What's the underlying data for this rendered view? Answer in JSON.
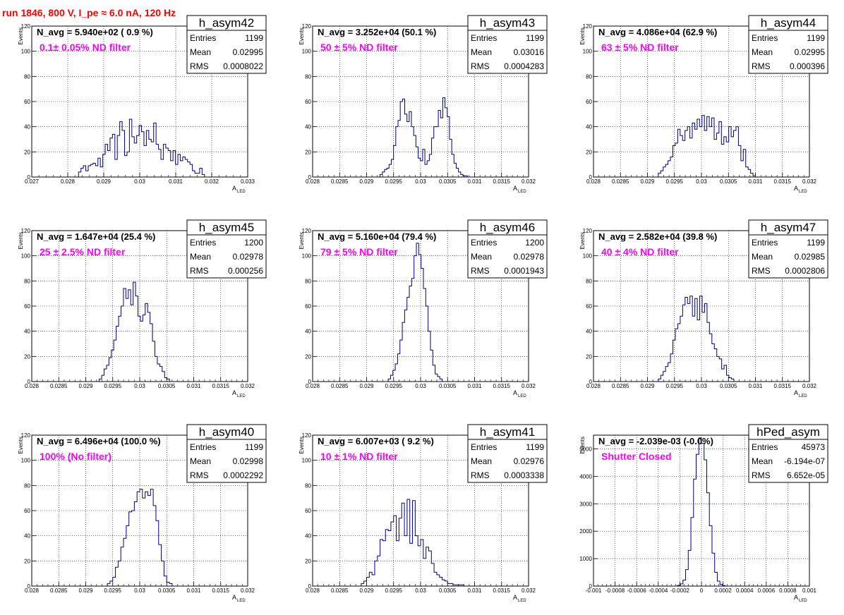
{
  "header": {
    "run_label": "run 1846,   800 V, I_pe ≈ 6.0 nA, 120 Hz"
  },
  "colors": {
    "histogram": "#000080",
    "title": "#ff0000",
    "filter_label": "#ff00ff",
    "grid": "#000000"
  },
  "chart_data": [
    {
      "type": "bar",
      "name": "h_asym42",
      "navg": "N_avg = 5.940e+02 ( 0.9 %)",
      "filter": "0.1± 0.05% ND filter",
      "stats": [
        [
          "Entries",
          "1199"
        ],
        [
          "Mean",
          "0.02995"
        ],
        [
          "RMS",
          "0.0008022"
        ]
      ],
      "xlabel": "A",
      "xlabel_sub": "LED",
      "ylabel": "Events",
      "xlim": [
        0.027,
        0.033
      ],
      "ylim": [
        0,
        120
      ],
      "xticks": [
        "0.027",
        "0.028",
        "0.029",
        "0.03",
        "0.031",
        "0.032",
        "0.033"
      ],
      "yticks": [
        "0",
        "20",
        "40",
        "60",
        "80",
        "100",
        "120"
      ],
      "bin_edges_range": [
        0.0283,
        0.0318
      ],
      "values": [
        4,
        7,
        9,
        5,
        9,
        10,
        11,
        9,
        15,
        8,
        18,
        26,
        21,
        31,
        34,
        14,
        33,
        44,
        37,
        17,
        20,
        46,
        32,
        27,
        33,
        41,
        36,
        25,
        37,
        30,
        28,
        43,
        26,
        22,
        14,
        26,
        23,
        21,
        13,
        21,
        10,
        18,
        13,
        16,
        14,
        12,
        10,
        5,
        3,
        3,
        7,
        2
      ]
    },
    {
      "type": "bar",
      "name": "h_asym43",
      "navg": "N_avg = 3.252e+04 (50.1 %)",
      "filter": "50 ± 5% ND filter",
      "stats": [
        [
          "Entries",
          "1199"
        ],
        [
          "Mean",
          "0.03016"
        ],
        [
          "RMS",
          "0.0004283"
        ]
      ],
      "xlabel": "A",
      "xlabel_sub": "LED",
      "ylabel": "Events",
      "xlim": [
        0.028,
        0.032
      ],
      "ylim": [
        0,
        120
      ],
      "xticks": [
        "0.028",
        "0.0285",
        "0.029",
        "0.0295",
        "0.03",
        "0.0305",
        "0.031",
        "0.0315",
        "0.032"
      ],
      "yticks": [
        "0",
        "20",
        "40",
        "60",
        "80",
        "100",
        "120"
      ],
      "bin_edges_range": [
        0.02925,
        0.03095
      ],
      "values": [
        2,
        4,
        6,
        7,
        10,
        14,
        25,
        40,
        45,
        60,
        62,
        50,
        44,
        52,
        40,
        33,
        24,
        15,
        13,
        22,
        10,
        13,
        18,
        31,
        40,
        40,
        53,
        47,
        63,
        55,
        48,
        30,
        18,
        11,
        7,
        4,
        2,
        1,
        1,
        0,
        0
      ]
    },
    {
      "type": "bar",
      "name": "h_asym44",
      "navg": "N_avg = 4.086e+04 (62.9 %)",
      "filter": "63 ± 5% ND filter",
      "stats": [
        [
          "Entries",
          "1199"
        ],
        [
          "Mean",
          "0.02995"
        ],
        [
          "RMS",
          "0.000396"
        ]
      ],
      "xlabel": "A",
      "xlabel_sub": "LED",
      "ylabel": "Events",
      "xlim": [
        0.028,
        0.032
      ],
      "ylim": [
        0,
        120
      ],
      "xticks": [
        "0.028",
        "0.0285",
        "0.029",
        "0.0295",
        "0.03",
        "0.0305",
        "0.031",
        "0.0315",
        "0.032"
      ],
      "yticks": [
        "0",
        "20",
        "40",
        "60",
        "80",
        "100",
        "120"
      ],
      "bin_edges_range": [
        0.0292,
        0.031
      ],
      "values": [
        3,
        5,
        8,
        10,
        13,
        16,
        25,
        27,
        38,
        33,
        29,
        37,
        40,
        31,
        43,
        38,
        46,
        40,
        49,
        37,
        48,
        40,
        47,
        30,
        35,
        44,
        26,
        32,
        28,
        40,
        32,
        37,
        40,
        25,
        13,
        22,
        8,
        6,
        3,
        1
      ]
    },
    {
      "type": "bar",
      "name": "h_asym45",
      "navg": "N_avg = 1.647e+04 (25.4 %)",
      "filter": "25 ± 2.5% ND filter",
      "stats": [
        [
          "Entries",
          "1200"
        ],
        [
          "Mean",
          "0.02978"
        ],
        [
          "RMS",
          "0.000256"
        ]
      ],
      "xlabel": "A",
      "xlabel_sub": "LED",
      "ylabel": "Events",
      "xlim": [
        0.028,
        0.032
      ],
      "ylim": [
        0,
        120
      ],
      "xticks": [
        "0.028",
        "0.0285",
        "0.029",
        "0.0295",
        "0.03",
        "0.0305",
        "0.031",
        "0.0315",
        "0.032"
      ],
      "yticks": [
        "0",
        "20",
        "40",
        "60",
        "80",
        "100",
        "120"
      ],
      "bin_edges_range": [
        0.02925,
        0.03055
      ],
      "values": [
        2,
        5,
        10,
        13,
        19,
        25,
        33,
        44,
        52,
        60,
        74,
        66,
        73,
        61,
        79,
        68,
        52,
        48,
        53,
        62,
        55,
        46,
        32,
        20,
        14,
        12,
        8,
        3,
        2
      ]
    },
    {
      "type": "bar",
      "name": "h_asym46",
      "navg": "N_avg = 5.160e+04 (79.4 %)",
      "filter": "79 ± 5% ND filter",
      "stats": [
        [
          "Entries",
          "1200"
        ],
        [
          "Mean",
          "0.02978"
        ],
        [
          "RMS",
          "0.0001943"
        ]
      ],
      "xlabel": "A",
      "xlabel_sub": "LED",
      "ylabel": "Events",
      "xlim": [
        0.028,
        0.032
      ],
      "ylim": [
        0,
        120
      ],
      "xticks": [
        "0.028",
        "0.0285",
        "0.029",
        "0.0295",
        "0.03",
        "0.0305",
        "0.031",
        "0.0315",
        "0.032"
      ],
      "yticks": [
        "0",
        "20",
        "40",
        "60",
        "80",
        "100",
        "120"
      ],
      "bin_edges_range": [
        0.0294,
        0.0304
      ],
      "values": [
        2,
        5,
        9,
        14,
        22,
        33,
        47,
        57,
        67,
        76,
        82,
        100,
        110,
        101,
        90,
        74,
        60,
        40,
        25,
        13,
        6,
        4,
        2
      ]
    },
    {
      "type": "bar",
      "name": "h_asym47",
      "navg": "N_avg = 2.582e+04 (39.8 %)",
      "filter": "40 ± 4% ND filter",
      "stats": [
        [
          "Entries",
          "1199"
        ],
        [
          "Mean",
          "0.02985"
        ],
        [
          "RMS",
          "0.0002806"
        ]
      ],
      "xlabel": "A",
      "xlabel_sub": "LED",
      "ylabel": "Events",
      "xlim": [
        0.028,
        0.032
      ],
      "ylim": [
        0,
        120
      ],
      "xticks": [
        "0.028",
        "0.0285",
        "0.029",
        "0.0295",
        "0.03",
        "0.0305",
        "0.031",
        "0.0315",
        "0.032"
      ],
      "yticks": [
        "0",
        "20",
        "40",
        "60",
        "80",
        "100",
        "120"
      ],
      "bin_edges_range": [
        0.0292,
        0.0306
      ],
      "values": [
        2,
        5,
        8,
        12,
        15,
        22,
        33,
        42,
        46,
        52,
        61,
        67,
        62,
        68,
        52,
        66,
        49,
        68,
        55,
        62,
        47,
        38,
        30,
        26,
        20,
        18,
        10,
        13,
        5,
        3,
        2
      ]
    },
    {
      "type": "bar",
      "name": "h_asym40",
      "navg": "N_avg = 6.496e+04 (100.0 %)",
      "filter": "100% (No filter)",
      "stats": [
        [
          "Entries",
          "1199"
        ],
        [
          "Mean",
          "0.02998"
        ],
        [
          "RMS",
          "0.0002292"
        ]
      ],
      "xlabel": "A",
      "xlabel_sub": "LED",
      "ylabel": "Events",
      "xlim": [
        0.028,
        0.032
      ],
      "ylim": [
        0,
        120
      ],
      "xticks": [
        "0.028",
        "0.0285",
        "0.029",
        "0.0295",
        "0.03",
        "0.0305",
        "0.031",
        "0.0315",
        "0.032"
      ],
      "yticks": [
        "0",
        "20",
        "40",
        "60",
        "80",
        "100",
        "120"
      ],
      "bin_edges_range": [
        0.0294,
        0.0306
      ],
      "values": [
        2,
        4,
        7,
        15,
        20,
        31,
        38,
        48,
        59,
        60,
        67,
        75,
        77,
        70,
        75,
        72,
        77,
        64,
        52,
        33,
        20,
        8,
        3,
        2
      ]
    },
    {
      "type": "bar",
      "name": "h_asym41",
      "navg": "N_avg = 6.007e+03 ( 9.2 %)",
      "filter": "10 ± 1% ND filter",
      "stats": [
        [
          "Entries",
          "1199"
        ],
        [
          "Mean",
          "0.02976"
        ],
        [
          "RMS",
          "0.0003338"
        ]
      ],
      "xlabel": "A",
      "xlabel_sub": "LED",
      "ylabel": "Events",
      "xlim": [
        0.028,
        0.032
      ],
      "ylim": [
        0,
        120
      ],
      "xticks": [
        "0.028",
        "0.0285",
        "0.029",
        "0.0295",
        "0.03",
        "0.0305",
        "0.031",
        "0.0315",
        "0.032"
      ],
      "yticks": [
        "0",
        "20",
        "40",
        "60",
        "80",
        "100",
        "120"
      ],
      "bin_edges_range": [
        0.0289,
        0.0308
      ],
      "values": [
        2,
        4,
        7,
        11,
        9,
        20,
        24,
        37,
        36,
        45,
        44,
        51,
        56,
        36,
        54,
        66,
        40,
        69,
        34,
        68,
        40,
        32,
        37,
        22,
        31,
        28,
        18,
        11,
        9,
        7,
        5,
        4,
        2,
        2,
        1,
        1,
        1,
        1
      ]
    },
    {
      "type": "bar",
      "name": "hPed_asym",
      "navg": "N_avg = -2.039e-03 (-0.0%)",
      "filter": "Shutter Closed",
      "stats": [
        [
          "Entries",
          "45973"
        ],
        [
          "Mean",
          "-6.194e-07"
        ],
        [
          "RMS",
          "6.652e-05"
        ]
      ],
      "xlabel": "A",
      "xlabel_sub": "LED",
      "ylabel": "Events",
      "xlim": [
        -0.001,
        0.001
      ],
      "ylim": [
        0,
        5500
      ],
      "xticks": [
        "-0.001",
        "-0.0008",
        "-0.0006",
        "-0.0004",
        "-0.0002",
        "0",
        "0.0002",
        "0.0004",
        "0.0006",
        "0.0008",
        "0.001"
      ],
      "yticks": [
        "0",
        "1000",
        "2000",
        "3000",
        "4000",
        "5000"
      ],
      "bin_edges_range": [
        -0.00022,
        0.00022
      ],
      "values": [
        30,
        80,
        220,
        600,
        1300,
        2500,
        3900,
        4800,
        5400,
        5200,
        4600,
        3400,
        2200,
        1200,
        500,
        180,
        60,
        20
      ]
    }
  ]
}
